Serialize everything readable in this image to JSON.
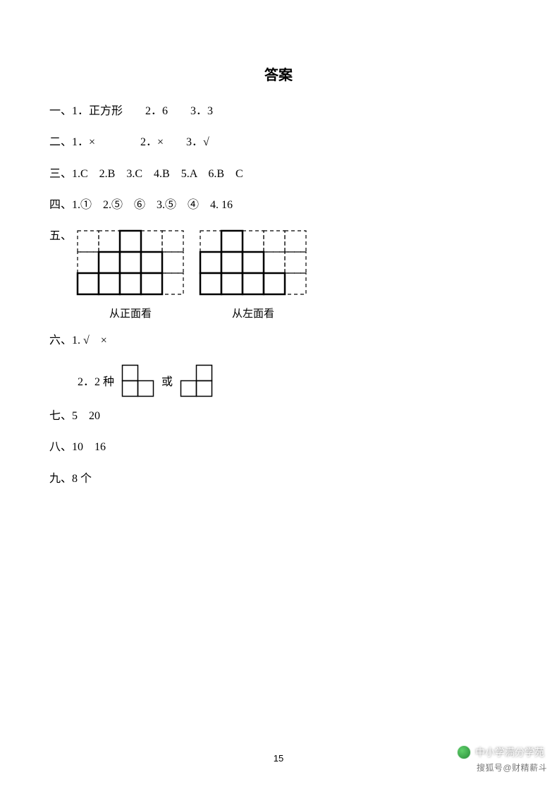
{
  "title": "答案",
  "lines": {
    "l1": "一、1．正方形　　2．6　　3．3",
    "l2": "二、1．×　　　　2．×　　3．√",
    "l3": "三、1.C　2.B　3.C　4.B　5.A　6.B　C",
    "l4": "四、1.①　2.⑤　⑥　3.⑤　④　4. 16",
    "l5label": "五、",
    "l6": "六、1. √　×",
    "l6b_prefix": "2．2 种",
    "l6b_mid": "或",
    "l7": "七、5　20",
    "l8": "八、10　16",
    "l9": "九、8 个"
  },
  "captions": {
    "front": "从正面看",
    "left": "从左面看"
  },
  "pageNumber": "15",
  "watermark1": "中小学满分学苑",
  "watermark2": "搜狐号@财精薪斗",
  "svg": {
    "cell": 30,
    "cols": 5,
    "rows": 3,
    "gridColor": "#000000",
    "dashPattern": "5,4",
    "solidWidth": 2.5,
    "dashWidth": 1.2,
    "frontSolid": [
      [
        2,
        0
      ],
      [
        1,
        1
      ],
      [
        2,
        1
      ],
      [
        3,
        1
      ],
      [
        0,
        2
      ],
      [
        1,
        2
      ],
      [
        2,
        2
      ],
      [
        3,
        2
      ]
    ],
    "leftSolid": [
      [
        1,
        0
      ],
      [
        0,
        1
      ],
      [
        1,
        1
      ],
      [
        2,
        1
      ],
      [
        0,
        2
      ],
      [
        1,
        2
      ],
      [
        2,
        2
      ],
      [
        3,
        2
      ]
    ]
  },
  "tromino": {
    "cell": 22,
    "stroke": "#000000",
    "strokeWidth": 1.5,
    "shapeA": [
      [
        0,
        0
      ],
      [
        0,
        1
      ],
      [
        1,
        1
      ]
    ],
    "shapeB": [
      [
        1,
        0
      ],
      [
        0,
        1
      ],
      [
        1,
        1
      ]
    ]
  }
}
